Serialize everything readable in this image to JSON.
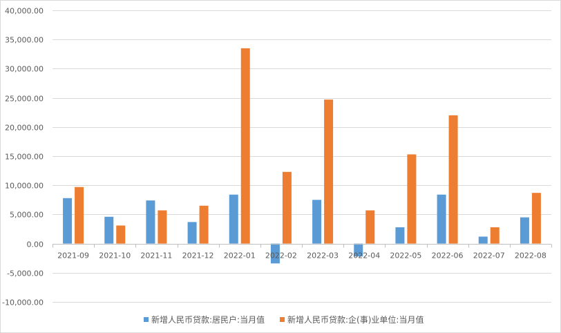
{
  "chart_data": {
    "type": "bar",
    "categories": [
      "2021-09",
      "2021-10",
      "2021-11",
      "2021-12",
      "2022-01",
      "2022-02",
      "2022-03",
      "2022-04",
      "2022-05",
      "2022-06",
      "2022-07",
      "2022-08"
    ],
    "series": [
      {
        "name": "新增人民币贷款:居民户:当月值",
        "color": "#5b9bd5",
        "values": [
          7800,
          4600,
          7400,
          3700,
          8400,
          -3400,
          7500,
          -2200,
          2800,
          8400,
          1200,
          4500
        ]
      },
      {
        "name": "新增人民币贷款:企(事)业单位:当月值",
        "color": "#ed7d31",
        "values": [
          9700,
          3100,
          5700,
          6500,
          33500,
          12300,
          24700,
          5700,
          15300,
          22000,
          2800,
          8700
        ]
      }
    ],
    "ylim": [
      -10000,
      40000
    ],
    "y_ticks": [
      {
        "value": 40000,
        "label": "40,000.00"
      },
      {
        "value": 35000,
        "label": "35,000.00"
      },
      {
        "value": 30000,
        "label": "30,000.00"
      },
      {
        "value": 25000,
        "label": "25,000.00"
      },
      {
        "value": 20000,
        "label": "20,000.00"
      },
      {
        "value": 15000,
        "label": "15,000.00"
      },
      {
        "value": 10000,
        "label": "10,000.00"
      },
      {
        "value": 5000,
        "label": "5,000.00"
      },
      {
        "value": 0,
        "label": "0.00"
      },
      {
        "value": -5000,
        "label": "-5,000.00"
      },
      {
        "value": -10000,
        "label": "-10,000.00"
      }
    ],
    "grid": true,
    "legend_position": "bottom",
    "title": "",
    "xlabel": "",
    "ylabel": ""
  }
}
